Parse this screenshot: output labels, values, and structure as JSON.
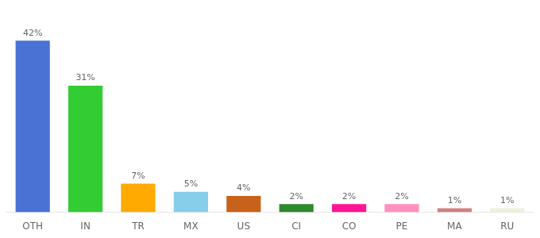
{
  "chart_data": {
    "type": "bar",
    "categories": [
      "OTH",
      "IN",
      "TR",
      "MX",
      "US",
      "CI",
      "CO",
      "PE",
      "MA",
      "RU"
    ],
    "values": [
      42,
      31,
      7,
      5,
      4,
      2,
      2,
      2,
      1,
      1
    ],
    "value_labels": [
      "42%",
      "31%",
      "7%",
      "5%",
      "4%",
      "2%",
      "2%",
      "2%",
      "1%",
      "1%"
    ],
    "data_labels": true,
    "colors": [
      "#4a72d4",
      "#33cc33",
      "#ffaa00",
      "#87ceeb",
      "#c8621a",
      "#2d8a2d",
      "#ff1493",
      "#ff90c0",
      "#d08080",
      "#f0f0d8"
    ],
    "ylim": [
      0,
      50
    ],
    "grid": false,
    "tick_labels": "x"
  }
}
